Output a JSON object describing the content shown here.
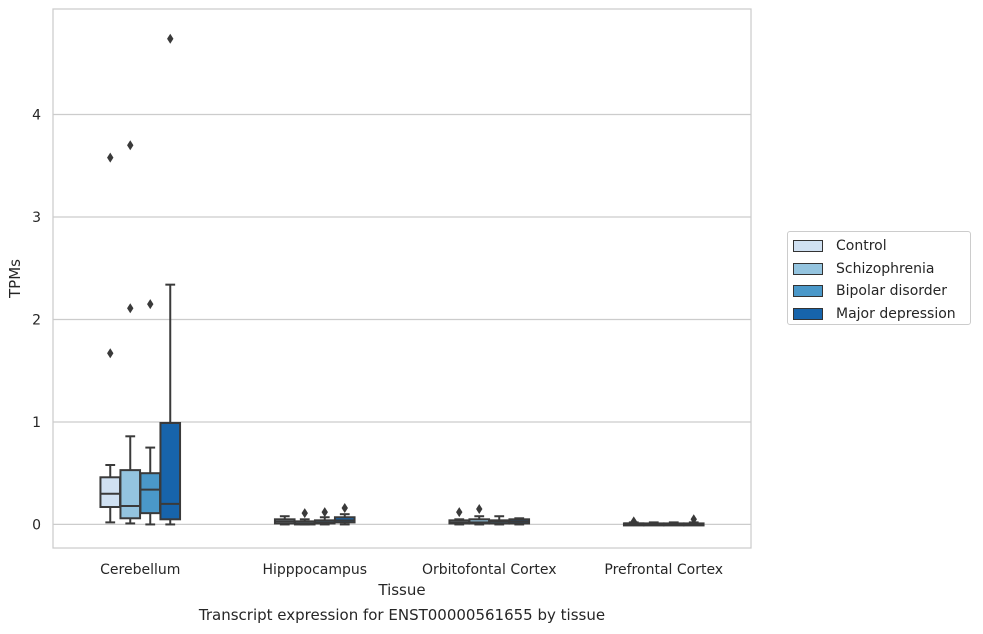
{
  "chart_data": {
    "type": "box",
    "title": "",
    "caption": "Transcript expression for ENST00000561655 by tissue",
    "xlabel": "Tissue",
    "ylabel": "TPMs",
    "ylim": [
      -0.23,
      5.03
    ],
    "yticks": [
      0,
      1,
      2,
      3,
      4
    ],
    "grid": "horizontal",
    "legend_position": "right",
    "categories": [
      "Cerebellum",
      "Hipppocampus",
      "Orbitofontal Cortex",
      "Prefrontal Cortex"
    ],
    "series": [
      {
        "name": "Control",
        "color": "#d0e1f2",
        "boxes": [
          {
            "whisker_low": 0.02,
            "q1": 0.17,
            "median": 0.3,
            "q3": 0.46,
            "whisker_high": 0.58,
            "outliers": [
              1.67,
              3.58
            ]
          },
          {
            "whisker_low": 0.0,
            "q1": 0.01,
            "median": 0.03,
            "q3": 0.05,
            "whisker_high": 0.08,
            "outliers": []
          },
          {
            "whisker_low": 0.0,
            "q1": 0.01,
            "median": 0.02,
            "q3": 0.04,
            "whisker_high": 0.05,
            "outliers": [
              0.12
            ]
          },
          {
            "whisker_low": 0.0,
            "q1": 0.0,
            "median": 0.01,
            "q3": 0.01,
            "whisker_high": 0.02,
            "outliers": [
              0.03
            ]
          }
        ]
      },
      {
        "name": "Schizophrenia",
        "color": "#94c4df",
        "boxes": [
          {
            "whisker_low": 0.01,
            "q1": 0.06,
            "median": 0.18,
            "q3": 0.53,
            "whisker_high": 0.86,
            "outliers": [
              2.11,
              3.7
            ]
          },
          {
            "whisker_low": 0.0,
            "q1": 0.0,
            "median": 0.01,
            "q3": 0.03,
            "whisker_high": 0.05,
            "outliers": [
              0.11
            ]
          },
          {
            "whisker_low": 0.0,
            "q1": 0.01,
            "median": 0.02,
            "q3": 0.05,
            "whisker_high": 0.08,
            "outliers": [
              0.15
            ]
          },
          {
            "whisker_low": 0.0,
            "q1": 0.0,
            "median": 0.005,
            "q3": 0.01,
            "whisker_high": 0.02,
            "outliers": []
          }
        ]
      },
      {
        "name": "Bipolar disorder",
        "color": "#4a98c9",
        "boxes": [
          {
            "whisker_low": 0.0,
            "q1": 0.11,
            "median": 0.34,
            "q3": 0.5,
            "whisker_high": 0.75,
            "outliers": [
              2.15
            ]
          },
          {
            "whisker_low": 0.0,
            "q1": 0.01,
            "median": 0.02,
            "q3": 0.04,
            "whisker_high": 0.07,
            "outliers": [
              0.12
            ]
          },
          {
            "whisker_low": 0.0,
            "q1": 0.01,
            "median": 0.03,
            "q3": 0.04,
            "whisker_high": 0.08,
            "outliers": []
          },
          {
            "whisker_low": 0.0,
            "q1": 0.0,
            "median": 0.005,
            "q3": 0.01,
            "whisker_high": 0.02,
            "outliers": []
          }
        ]
      },
      {
        "name": "Major depression",
        "color": "#1764ab",
        "boxes": [
          {
            "whisker_low": 0.0,
            "q1": 0.05,
            "median": 0.2,
            "q3": 0.99,
            "whisker_high": 2.34,
            "outliers": [
              4.74
            ]
          },
          {
            "whisker_low": 0.0,
            "q1": 0.02,
            "median": 0.04,
            "q3": 0.07,
            "whisker_high": 0.1,
            "outliers": [
              0.16
            ]
          },
          {
            "whisker_low": 0.0,
            "q1": 0.01,
            "median": 0.03,
            "q3": 0.05,
            "whisker_high": 0.06,
            "outliers": []
          },
          {
            "whisker_low": 0.0,
            "q1": 0.0,
            "median": 0.005,
            "q3": 0.01,
            "whisker_high": 0.02,
            "outliers": [
              0.05
            ]
          }
        ]
      }
    ]
  }
}
